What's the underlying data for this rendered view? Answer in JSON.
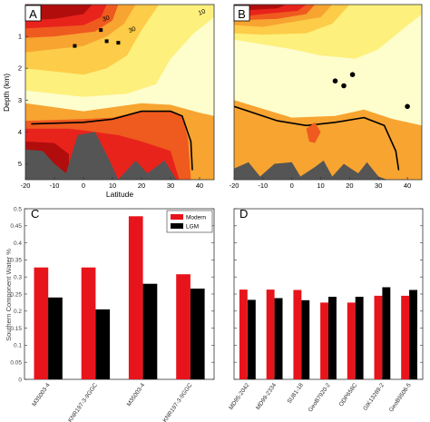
{
  "colors": {
    "deep_red": "#b10d0d",
    "red": "#e8231c",
    "orange_red": "#ef5a1f",
    "orange": "#f7a431",
    "yellow_orange": "#fdcc48",
    "yellow": "#fdf07c",
    "pale_yellow": "#fefdcc",
    "dark_red_blob": "#5c0000",
    "topography": "#555555",
    "modern_bar": "#e8141c",
    "lgm_bar": "#000000"
  },
  "chart_data": [
    {
      "type": "heatmap",
      "panel_label": "A",
      "title": "",
      "xlabel": "Latitude",
      "ylabel": "Depth (km)",
      "xlim": [
        -20,
        45
      ],
      "ylim": [
        5.5,
        0
      ],
      "x_ticks": [
        "-20",
        "-10",
        "0",
        "10",
        "20",
        "30",
        "40"
      ],
      "y_ticks": [
        "1",
        "2",
        "3",
        "4",
        "5"
      ],
      "contour_labels": [
        "30",
        "30",
        "10"
      ],
      "contour_levels": [
        10,
        30
      ],
      "black_contour_line": [
        [
          -18,
          3.75
        ],
        [
          0,
          3.7
        ],
        [
          10,
          3.6
        ],
        [
          20,
          3.35
        ],
        [
          30,
          3.35
        ],
        [
          34,
          3.5
        ],
        [
          37,
          4.3
        ],
        [
          37.5,
          5.2
        ]
      ],
      "core_sites": [
        {
          "lat": -3,
          "depth": 1.3
        },
        {
          "lat": 6,
          "depth": 0.8
        },
        {
          "lat": 8,
          "depth": 1.15
        },
        {
          "lat": 12,
          "depth": 1.2
        }
      ]
    },
    {
      "type": "heatmap",
      "panel_label": "B",
      "title": "",
      "xlabel": "",
      "ylabel": "",
      "xlim": [
        -20,
        45
      ],
      "ylim": [
        5.5,
        0
      ],
      "x_ticks": [
        "-20",
        "-10",
        "0",
        "10",
        "20",
        "30",
        "40"
      ],
      "y_ticks": [],
      "contour_labels": [],
      "black_contour_line": [
        [
          -20,
          3.2
        ],
        [
          -5,
          3.65
        ],
        [
          5,
          3.8
        ],
        [
          15,
          3.7
        ],
        [
          25,
          3.55
        ],
        [
          32,
          3.8
        ],
        [
          36,
          4.6
        ],
        [
          37,
          5.2
        ]
      ],
      "core_sites": [
        {
          "lat": 15,
          "depth": 2.4
        },
        {
          "lat": 18,
          "depth": 2.55
        },
        {
          "lat": 21,
          "depth": 2.2
        },
        {
          "lat": 40,
          "depth": 3.2
        }
      ]
    },
    {
      "type": "bar",
      "panel_label": "C",
      "title": "",
      "xlabel": "",
      "ylabel": "Southern Component Water %",
      "ylim": [
        0,
        0.5
      ],
      "y_ticks": [
        "0",
        "0.05",
        "0.1",
        "0.15",
        "0.2",
        "0.25",
        "0.3",
        "0.35",
        "0.4",
        "0.45",
        "0.5"
      ],
      "legend_position": "top-right",
      "categories": [
        "M35003-4",
        "KNR197-3-9GGC",
        "M35003-4",
        "KNR197-3-9GGC"
      ],
      "series": [
        {
          "name": "Modern",
          "values": [
            0.328,
            0.328,
            0.478,
            0.308
          ]
        },
        {
          "name": "LGM",
          "values": [
            0.24,
            0.205,
            0.28,
            0.266
          ]
        }
      ]
    },
    {
      "type": "bar",
      "panel_label": "D",
      "title": "",
      "xlabel": "",
      "ylabel": "",
      "ylim": [
        0,
        0.5
      ],
      "y_ticks": [],
      "categories": [
        "MD95-2042",
        "MD99-2334",
        "SU81-18",
        "GeoB7920-2",
        "ODP658C",
        "GIK13289-2",
        "GeoB9508-5"
      ],
      "series": [
        {
          "name": "Modern",
          "values": [
            0.263,
            0.263,
            0.262,
            0.225,
            0.225,
            0.245,
            0.245
          ]
        },
        {
          "name": "LGM",
          "values": [
            0.233,
            0.238,
            0.232,
            0.242,
            0.242,
            0.27,
            0.262
          ]
        }
      ]
    }
  ]
}
